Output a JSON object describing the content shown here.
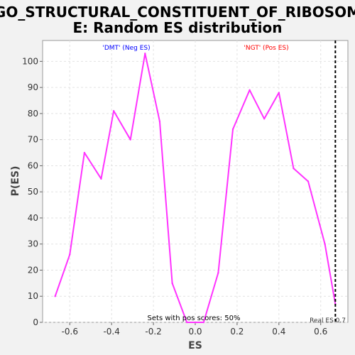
{
  "chart_data": {
    "type": "line",
    "title_lines": [
      "GO_STRUCTURAL_CONSTITUENT_OF_RIBOSOM",
      "E: Random ES distribution"
    ],
    "xlabel": "ES",
    "ylabel": "P(ES)",
    "xlim": [
      -0.73,
      0.73
    ],
    "ylim": [
      0,
      108
    ],
    "grid": true,
    "xticks": [
      -0.6,
      -0.4,
      -0.2,
      0.0,
      0.2,
      0.4,
      0.6
    ],
    "xtick_labels": [
      "-0.6",
      "-0.4",
      "-0.2",
      "0.0",
      "0.2",
      "0.4",
      "0.6"
    ],
    "yticks": [
      0,
      10,
      20,
      30,
      40,
      50,
      60,
      70,
      80,
      90,
      100
    ],
    "ytick_labels": [
      "0",
      "10",
      "20",
      "30",
      "40",
      "50",
      "60",
      "70",
      "80",
      "90",
      "100"
    ],
    "series": [
      {
        "name": "P(ES)",
        "color": "#ff33ff",
        "x": [
          -0.67,
          -0.6,
          -0.53,
          -0.45,
          -0.39,
          -0.31,
          -0.24,
          -0.17,
          -0.11,
          -0.04,
          0.0,
          0.04,
          0.11,
          0.18,
          0.26,
          0.33,
          0.4,
          0.47,
          0.54,
          0.62,
          0.67
        ],
        "y": [
          10,
          26,
          65,
          55,
          81,
          70,
          103,
          77,
          15,
          0,
          0,
          0,
          19,
          74,
          89,
          78,
          88,
          59,
          54,
          30,
          7
        ]
      }
    ],
    "real_es": {
      "value": 0.67,
      "label": "Real ES 0.7",
      "color": "#000000"
    },
    "annotations": {
      "neg": {
        "text": "'DMT' (Neg ES)",
        "color": "#0000ff"
      },
      "pos": {
        "text": "'NGT' (Pos ES)",
        "color": "#ff0000"
      },
      "footer": "Sets with pos scores: 50%"
    }
  }
}
